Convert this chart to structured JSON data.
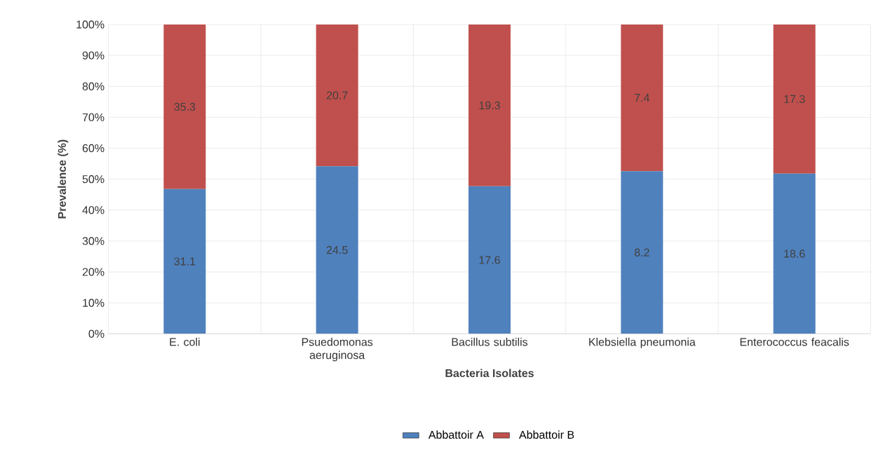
{
  "chart_data": {
    "type": "bar",
    "stacked": true,
    "xlabel": "Bacteria Isolates",
    "ylabel": "Prevalence (%)",
    "categories": [
      "E. coli",
      "Psuedomonas aeruginosa",
      "Bacillus subtilis",
      "Klebsiella pneumonia",
      "Enterococcus feacalis"
    ],
    "series": [
      {
        "name": "Abbattoir A",
        "color": "#4f81bd",
        "values": [
          46.8,
          54.2,
          47.7,
          52.6,
          51.8
        ]
      },
      {
        "name": "Abbattoir B",
        "color": "#c0504d",
        "values": [
          53.2,
          45.8,
          52.3,
          47.4,
          48.2
        ]
      }
    ],
    "annotations": [
      "31.1",
      "24.5",
      "17.6",
      "8.2",
      "18.6",
      "35.3",
      "20.7",
      "19.3",
      "7.4",
      "17.3"
    ],
    "ylim": [
      0,
      100
    ],
    "yticks": [
      {
        "value": 0,
        "label": "0%"
      },
      {
        "value": 10,
        "label": "10%"
      },
      {
        "value": 20,
        "label": "20%"
      },
      {
        "value": 30,
        "label": "30%"
      },
      {
        "value": 40,
        "label": "40%"
      },
      {
        "value": 50,
        "label": "50%"
      },
      {
        "value": 60,
        "label": "60%"
      },
      {
        "value": 70,
        "label": "70%"
      },
      {
        "value": 80,
        "label": "80%"
      },
      {
        "value": 90,
        "label": "90%"
      },
      {
        "value": 100,
        "label": "100%"
      }
    ],
    "grid": true,
    "legend": "bottom"
  }
}
